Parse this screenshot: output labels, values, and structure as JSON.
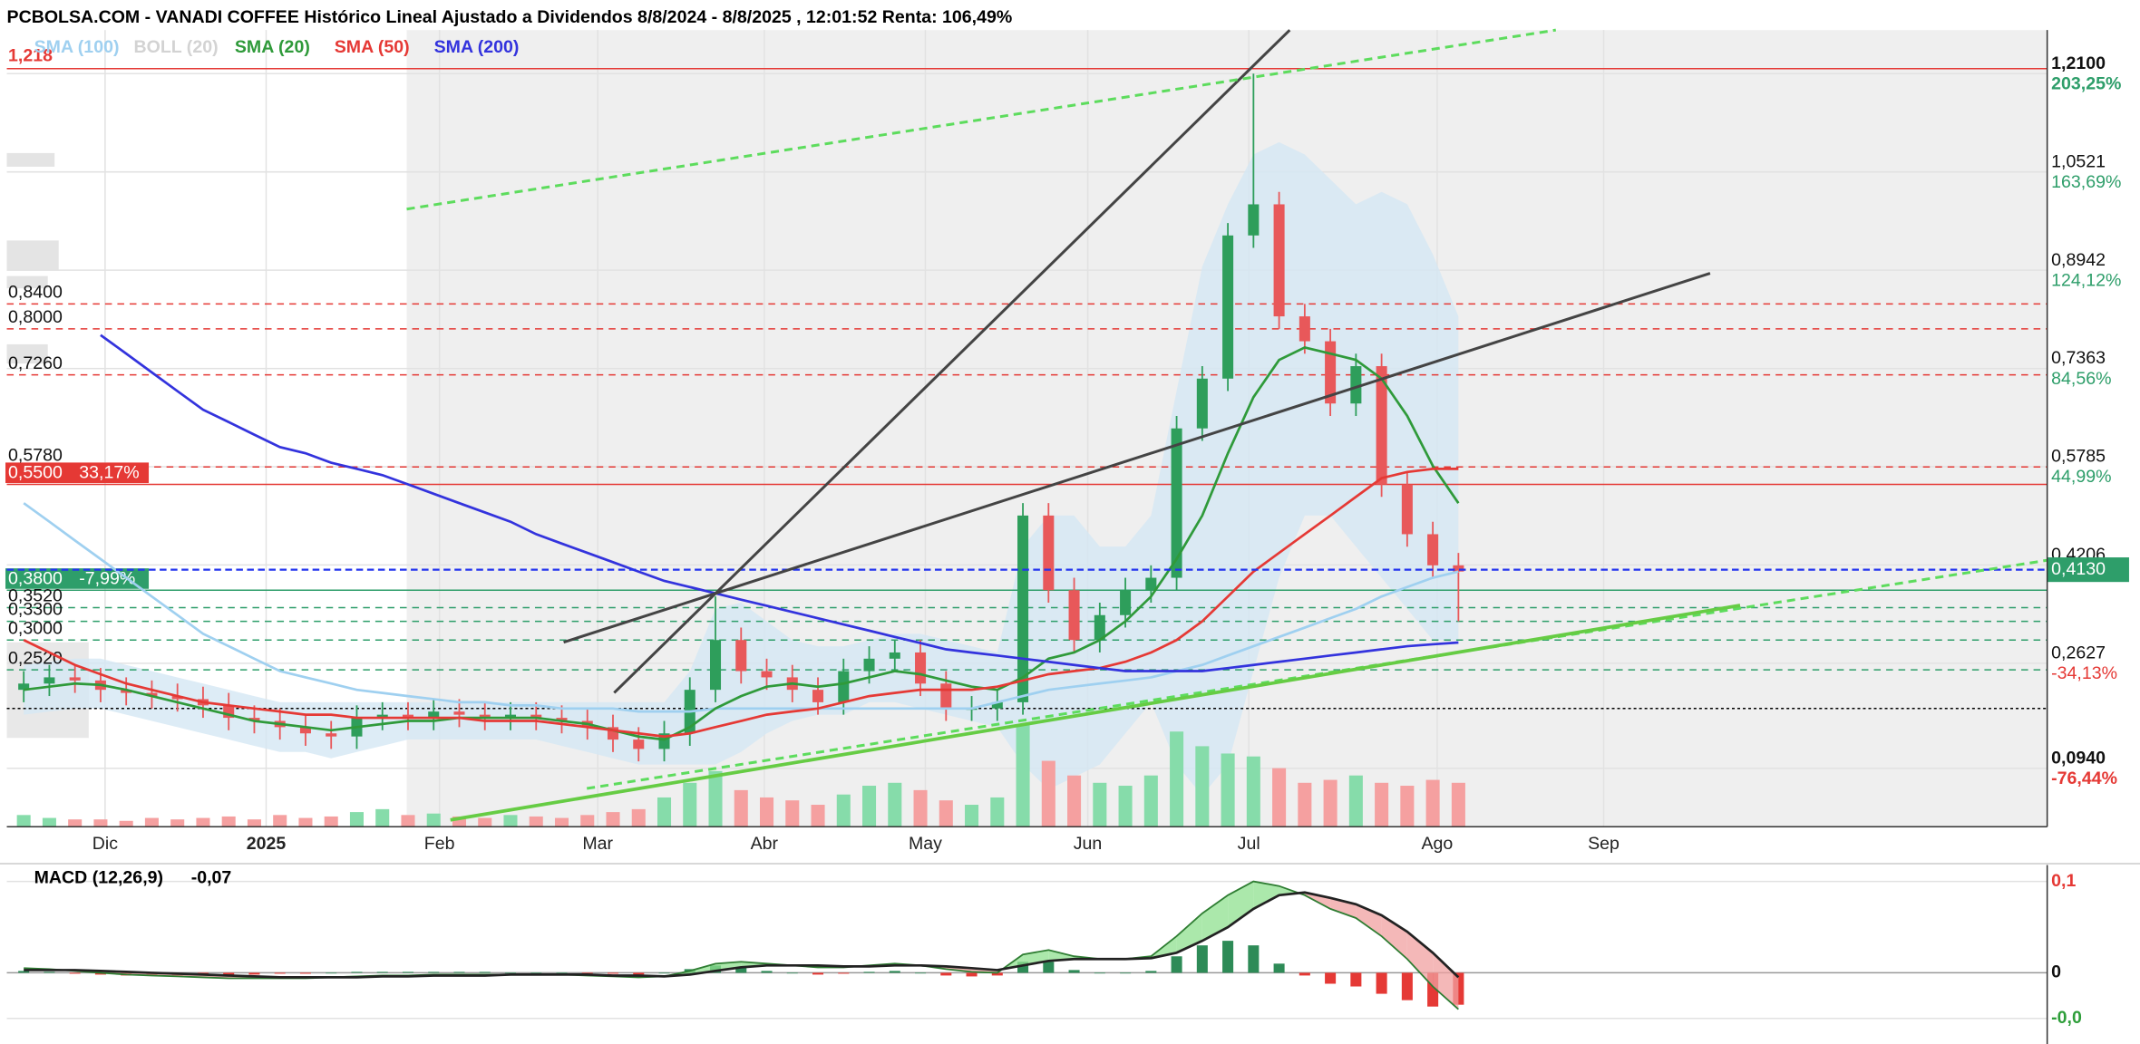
{
  "chart_data": [
    {
      "type": "candlestick",
      "title": "PCBOLSA.COM - VANADI COFFEE Histórico Lineal Ajustado a Dividendos 8/8/2024 - 8/8/2025 , 12:01:52 Renta: 106,49%",
      "x_labels": [
        "Dic",
        "2025",
        "Feb",
        "Mar",
        "Abr",
        "May",
        "Jun",
        "Jul",
        "Ago",
        "Sep"
      ],
      "open": [
        0.22,
        0.23,
        0.24,
        0.235,
        0.22,
        0.215,
        0.21,
        0.205,
        0.195,
        0.175,
        0.17,
        0.16,
        0.15,
        0.145,
        0.175,
        0.18,
        0.175,
        0.185,
        0.18,
        0.175,
        0.18,
        0.175,
        0.17,
        0.16,
        0.14,
        0.125,
        0.15,
        0.22,
        0.3,
        0.25,
        0.24,
        0.22,
        0.2,
        0.25,
        0.27,
        0.28,
        0.23,
        0.19,
        0.19,
        0.2,
        0.5,
        0.38,
        0.3,
        0.34,
        0.38,
        0.4,
        0.64,
        0.72,
        0.95,
        1.0,
        0.82,
        0.78,
        0.68,
        0.74,
        0.55,
        0.47,
        0.42
      ],
      "high": [
        0.25,
        0.26,
        0.26,
        0.255,
        0.24,
        0.235,
        0.23,
        0.225,
        0.215,
        0.195,
        0.19,
        0.18,
        0.17,
        0.195,
        0.2,
        0.2,
        0.205,
        0.205,
        0.2,
        0.2,
        0.2,
        0.195,
        0.19,
        0.18,
        0.16,
        0.17,
        0.24,
        0.37,
        0.32,
        0.27,
        0.26,
        0.24,
        0.27,
        0.29,
        0.3,
        0.3,
        0.25,
        0.21,
        0.22,
        0.52,
        0.52,
        0.4,
        0.36,
        0.4,
        0.42,
        0.66,
        0.74,
        0.97,
        1.21,
        1.02,
        0.84,
        0.8,
        0.76,
        0.76,
        0.57,
        0.49,
        0.44
      ],
      "low": [
        0.2,
        0.21,
        0.215,
        0.2,
        0.195,
        0.19,
        0.185,
        0.175,
        0.155,
        0.15,
        0.14,
        0.13,
        0.125,
        0.125,
        0.155,
        0.155,
        0.155,
        0.16,
        0.155,
        0.155,
        0.155,
        0.15,
        0.14,
        0.12,
        0.105,
        0.105,
        0.13,
        0.2,
        0.23,
        0.22,
        0.2,
        0.18,
        0.18,
        0.23,
        0.25,
        0.21,
        0.17,
        0.17,
        0.17,
        0.18,
        0.36,
        0.28,
        0.28,
        0.32,
        0.36,
        0.38,
        0.62,
        0.7,
        0.93,
        0.8,
        0.76,
        0.66,
        0.66,
        0.53,
        0.45,
        0.4,
        0.33
      ],
      "close": [
        0.23,
        0.24,
        0.235,
        0.22,
        0.215,
        0.21,
        0.205,
        0.195,
        0.175,
        0.17,
        0.16,
        0.15,
        0.145,
        0.175,
        0.18,
        0.175,
        0.185,
        0.18,
        0.175,
        0.18,
        0.175,
        0.17,
        0.16,
        0.14,
        0.125,
        0.15,
        0.22,
        0.3,
        0.25,
        0.24,
        0.22,
        0.2,
        0.25,
        0.27,
        0.28,
        0.23,
        0.19,
        0.19,
        0.2,
        0.5,
        0.38,
        0.3,
        0.34,
        0.38,
        0.4,
        0.64,
        0.72,
        0.95,
        1.0,
        0.82,
        0.78,
        0.68,
        0.74,
        0.55,
        0.47,
        0.42,
        0.41
      ],
      "volume": [
        8,
        6,
        5,
        5,
        4,
        6,
        5,
        6,
        7,
        5,
        8,
        6,
        7,
        10,
        12,
        8,
        9,
        7,
        6,
        8,
        7,
        6,
        8,
        10,
        12,
        20,
        30,
        38,
        25,
        20,
        18,
        15,
        22,
        28,
        30,
        25,
        18,
        15,
        20,
        70,
        45,
        35,
        30,
        28,
        35,
        65,
        55,
        50,
        48,
        40,
        30,
        32,
        35,
        30,
        28,
        32,
        30
      ],
      "up_color": "#2e9e5b",
      "down_color": "#e8585a",
      "volume_up_color": "#86dcaa",
      "volume_down_color": "#f5a0a0",
      "series": [
        {
          "name": "SMA (100)",
          "color": "#9fd0f0",
          "values": [
            0.52,
            0.49,
            0.46,
            0.43,
            0.4,
            0.37,
            0.34,
            0.31,
            0.29,
            0.27,
            0.25,
            0.24,
            0.23,
            0.22,
            0.215,
            0.21,
            0.205,
            0.2,
            0.2,
            0.195,
            0.195,
            0.19,
            0.19,
            0.19,
            0.185,
            0.185,
            0.185,
            0.19,
            0.19,
            0.19,
            0.19,
            0.19,
            0.19,
            0.19,
            0.19,
            0.19,
            0.19,
            0.19,
            0.2,
            0.21,
            0.22,
            0.225,
            0.23,
            0.235,
            0.24,
            0.25,
            0.26,
            0.275,
            0.29,
            0.305,
            0.32,
            0.335,
            0.35,
            0.37,
            0.385,
            0.4,
            0.41
          ]
        },
        {
          "name": "BOLL (20)",
          "color": "#d3d3d3",
          "fill": "#d4e7f4",
          "upper": [
            0.26,
            0.265,
            0.27,
            0.27,
            0.26,
            0.25,
            0.24,
            0.23,
            0.22,
            0.21,
            0.2,
            0.2,
            0.2,
            0.2,
            0.2,
            0.2,
            0.2,
            0.2,
            0.2,
            0.2,
            0.2,
            0.2,
            0.2,
            0.2,
            0.2,
            0.2,
            0.25,
            0.35,
            0.36,
            0.33,
            0.3,
            0.29,
            0.29,
            0.3,
            0.31,
            0.31,
            0.3,
            0.29,
            0.28,
            0.45,
            0.5,
            0.5,
            0.45,
            0.45,
            0.5,
            0.7,
            0.9,
            1.0,
            1.08,
            1.1,
            1.08,
            1.04,
            1.0,
            1.02,
            1.0,
            0.92,
            0.82
          ],
          "lower": [
            0.18,
            0.185,
            0.19,
            0.19,
            0.18,
            0.17,
            0.16,
            0.15,
            0.14,
            0.13,
            0.12,
            0.12,
            0.11,
            0.12,
            0.13,
            0.14,
            0.14,
            0.14,
            0.14,
            0.14,
            0.14,
            0.13,
            0.12,
            0.11,
            0.1,
            0.1,
            0.1,
            0.1,
            0.12,
            0.15,
            0.17,
            0.18,
            0.18,
            0.2,
            0.2,
            0.19,
            0.18,
            0.17,
            0.16,
            0.1,
            0.06,
            0.08,
            0.1,
            0.15,
            0.2,
            0.1,
            0.05,
            0.1,
            0.25,
            0.4,
            0.5,
            0.5,
            0.45,
            0.4,
            0.35,
            0.3,
            0.3
          ]
        },
        {
          "name": "SMA (20)",
          "color": "#2f9a3a",
          "values": [
            0.22,
            0.225,
            0.23,
            0.228,
            0.22,
            0.21,
            0.2,
            0.19,
            0.18,
            0.17,
            0.165,
            0.16,
            0.155,
            0.16,
            0.165,
            0.17,
            0.17,
            0.175,
            0.175,
            0.175,
            0.175,
            0.17,
            0.165,
            0.155,
            0.145,
            0.14,
            0.16,
            0.19,
            0.21,
            0.225,
            0.23,
            0.225,
            0.23,
            0.24,
            0.25,
            0.245,
            0.235,
            0.225,
            0.22,
            0.24,
            0.27,
            0.28,
            0.3,
            0.33,
            0.37,
            0.43,
            0.5,
            0.6,
            0.69,
            0.75,
            0.77,
            0.76,
            0.75,
            0.72,
            0.66,
            0.58,
            0.52
          ]
        },
        {
          "name": "SMA (50)",
          "color": "#e53935",
          "values": [
            0.3,
            0.28,
            0.26,
            0.245,
            0.23,
            0.22,
            0.21,
            0.2,
            0.195,
            0.19,
            0.185,
            0.18,
            0.18,
            0.175,
            0.175,
            0.175,
            0.175,
            0.175,
            0.17,
            0.17,
            0.17,
            0.165,
            0.16,
            0.155,
            0.15,
            0.145,
            0.15,
            0.16,
            0.17,
            0.18,
            0.185,
            0.19,
            0.2,
            0.21,
            0.215,
            0.22,
            0.22,
            0.22,
            0.225,
            0.235,
            0.245,
            0.25,
            0.255,
            0.265,
            0.28,
            0.3,
            0.33,
            0.37,
            0.41,
            0.44,
            0.47,
            0.5,
            0.53,
            0.56,
            0.57,
            0.575,
            0.575
          ]
        },
        {
          "name": "SMA (200)",
          "color": "#3333dd",
          "values": [
            null,
            null,
            null,
            0.79,
            0.76,
            0.73,
            0.7,
            0.67,
            0.65,
            0.63,
            0.61,
            0.6,
            0.585,
            0.575,
            0.565,
            0.55,
            0.535,
            0.52,
            0.505,
            0.49,
            0.47,
            0.455,
            0.44,
            0.425,
            0.41,
            0.395,
            0.385,
            0.375,
            0.365,
            0.355,
            0.345,
            0.335,
            0.325,
            0.315,
            0.305,
            0.295,
            0.285,
            0.28,
            0.275,
            0.27,
            0.265,
            0.26,
            0.255,
            0.25,
            0.25,
            0.25,
            0.25,
            0.255,
            0.26,
            0.265,
            0.27,
            0.275,
            0.28,
            0.285,
            0.29,
            0.293,
            0.296
          ]
        }
      ],
      "levels": [
        {
          "value": 1.218,
          "label": "1,218",
          "color": "#e53935",
          "style": "solid"
        },
        {
          "value": 0.84,
          "label": "0,8400",
          "color": "#e53935",
          "style": "dashed"
        },
        {
          "value": 0.8,
          "label": "0,8000",
          "color": "#e53935",
          "style": "dashed"
        },
        {
          "value": 0.726,
          "label": "0,7260",
          "color": "#e53935",
          "style": "dashed"
        },
        {
          "value": 0.578,
          "label": "0,5780",
          "color": "#e53935",
          "style": "dashed"
        },
        {
          "value": 0.55,
          "label": "0,5500",
          "change": "33,17%",
          "color": "#e53935",
          "style": "solid"
        },
        {
          "value": 0.38,
          "label": "0,3800",
          "change": "-7,99%",
          "color": "#2e9e6a",
          "style": "solid"
        },
        {
          "value": 0.352,
          "label": "0,3520",
          "color": "#2e9e6a",
          "style": "dashed"
        },
        {
          "value": 0.33,
          "label": "0,3300",
          "color": "#2e9e6a",
          "style": "dashed"
        },
        {
          "value": 0.3,
          "label": "0,3000",
          "color": "#2e9e6a",
          "style": "dashed"
        },
        {
          "value": 0.252,
          "label": "0,2520",
          "color": "#2e9e6a",
          "style": "dashed"
        },
        {
          "value": 0.19,
          "color": "#000000",
          "style": "dotted"
        }
      ],
      "last_price": {
        "value": 0.413,
        "label": "0,4130",
        "color": "#2e9e6a",
        "line_color": "#2233ee"
      },
      "ylim": [
        0,
        1.28
      ],
      "yticks": [
        {
          "value": 1.21,
          "label": "1,2100"
        },
        {
          "value": 1.0521,
          "label": "1,0521"
        },
        {
          "value": 0.8942,
          "label": "0,8942"
        },
        {
          "value": 0.7363,
          "label": "0,7363"
        },
        {
          "value": 0.5785,
          "label": "0,5785"
        },
        {
          "value": 0.4206,
          "label": "0,4206"
        },
        {
          "value": 0.2627,
          "label": "0,2627"
        },
        {
          "value": 0.094,
          "label": "0,0940"
        }
      ],
      "ytick_changes": [
        "203,25%",
        "163,69%",
        "124,12%",
        "84,56%",
        "44,99%",
        null,
        "-34,13%",
        "-76,44%"
      ],
      "grid": true
    },
    {
      "type": "macd",
      "title": "MACD (12,26,9)",
      "value_label": "-0,07",
      "macd": [
        0.005,
        0.004,
        0.002,
        0,
        -0.002,
        -0.003,
        -0.004,
        -0.005,
        -0.006,
        -0.006,
        -0.006,
        -0.006,
        -0.005,
        -0.004,
        -0.003,
        -0.003,
        -0.002,
        -0.002,
        -0.002,
        -0.002,
        -0.002,
        -0.002,
        -0.003,
        -0.004,
        -0.005,
        -0.004,
        0.002,
        0.01,
        0.012,
        0.01,
        0.008,
        0.006,
        0.006,
        0.008,
        0.01,
        0.008,
        0.004,
        0.001,
        0.0,
        0.02,
        0.025,
        0.018,
        0.015,
        0.015,
        0.018,
        0.04,
        0.065,
        0.085,
        0.1,
        0.095,
        0.085,
        0.07,
        0.06,
        0.04,
        0.015,
        -0.015,
        -0.04
      ],
      "signal": [
        0.003,
        0.003,
        0.003,
        0.002,
        0.001,
        0,
        -0.001,
        -0.002,
        -0.003,
        -0.004,
        -0.005,
        -0.005,
        -0.005,
        -0.005,
        -0.004,
        -0.004,
        -0.003,
        -0.003,
        -0.003,
        -0.002,
        -0.002,
        -0.002,
        -0.002,
        -0.003,
        -0.003,
        -0.004,
        -0.002,
        0.002,
        0.006,
        0.008,
        0.008,
        0.008,
        0.007,
        0.007,
        0.008,
        0.008,
        0.007,
        0.005,
        0.003,
        0.008,
        0.013,
        0.015,
        0.015,
        0.015,
        0.016,
        0.022,
        0.035,
        0.05,
        0.07,
        0.085,
        0.088,
        0.082,
        0.075,
        0.063,
        0.045,
        0.022,
        -0.005
      ],
      "histogram": [
        0.002,
        0.001,
        -0.001,
        -0.002,
        -0.003,
        -0.003,
        -0.003,
        -0.003,
        -0.003,
        -0.002,
        -0.001,
        -0.001,
        0,
        0.001,
        0.001,
        0.001,
        0.001,
        0.001,
        0.001,
        0,
        0,
        0,
        -0.001,
        -0.001,
        -0.002,
        0,
        0.004,
        0.008,
        0.006,
        0.002,
        0,
        -0.002,
        -0.001,
        0.001,
        0.002,
        0,
        -0.003,
        -0.004,
        -0.003,
        0.012,
        0.012,
        0.003,
        0,
        0,
        0.002,
        0.018,
        0.03,
        0.035,
        0.03,
        0.01,
        -0.003,
        -0.012,
        -0.015,
        -0.023,
        -0.03,
        -0.037,
        -0.035
      ],
      "macd_color": "#2e7d32",
      "signal_color": "#222222",
      "up_color": "#2e8b57",
      "down_color": "#e53935",
      "ylim": [
        -0.075,
        0.118
      ],
      "yticks": [
        {
          "value": 0.1,
          "label": "0,1"
        },
        0,
        {
          "value": -0.05,
          "label": "-0,0"
        }
      ]
    }
  ]
}
